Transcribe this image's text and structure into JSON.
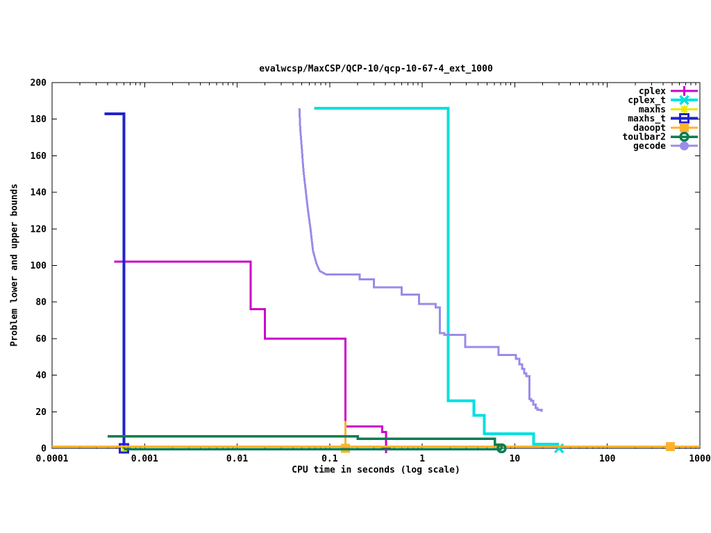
{
  "chart_data": {
    "type": "line",
    "title": "evalwcsp/MaxCSP/QCP-10/qcp-10-67-4_ext_1000",
    "xlabel": "CPU time in seconds (log scale)",
    "ylabel": "Problem lower and upper bounds",
    "x_scale": "log",
    "xlim": [
      0.0001,
      1000
    ],
    "ylim": [
      0,
      200
    ],
    "grid": false,
    "legend_position": "top-right",
    "x_ticks": [
      {
        "v": 0.0001,
        "label": "0.0001"
      },
      {
        "v": 0.001,
        "label": "0.001"
      },
      {
        "v": 0.01,
        "label": "0.01"
      },
      {
        "v": 0.1,
        "label": "0.1"
      },
      {
        "v": 1,
        "label": "1"
      },
      {
        "v": 10,
        "label": "10"
      },
      {
        "v": 100,
        "label": "100"
      },
      {
        "v": 1000,
        "label": "1000"
      }
    ],
    "y_ticks": [
      0,
      20,
      40,
      60,
      80,
      100,
      120,
      140,
      160,
      180,
      200
    ],
    "series": [
      {
        "name": "cplex",
        "label": "cplex",
        "color": "#cc00cc",
        "marker": "plus",
        "line_width": 3,
        "segments": [
          [
            [
              0.00047,
              102
            ],
            [
              0.014,
              102
            ],
            [
              0.014,
              76
            ],
            [
              0.02,
              76
            ],
            [
              0.02,
              60
            ],
            [
              0.148,
              60
            ],
            [
              0.148,
              12
            ],
            [
              0.37,
              12
            ],
            [
              0.37,
              9
            ],
            [
              0.405,
              9
            ],
            [
              0.405,
              0
            ]
          ]
        ],
        "markers": [
          [
            0.405,
            0
          ]
        ]
      },
      {
        "name": "cplex_t",
        "label": "cplex_t",
        "color": "#00e0e0",
        "marker": "cross",
        "line_width": 4,
        "segments": [
          [
            [
              0.068,
              186
            ],
            [
              1.9,
              186
            ],
            [
              1.9,
              26
            ],
            [
              3.6,
              26
            ],
            [
              3.6,
              18
            ],
            [
              4.7,
              18
            ],
            [
              4.7,
              8
            ],
            [
              16,
              8
            ],
            [
              16,
              2.3
            ],
            [
              30,
              2.3
            ]
          ]
        ],
        "markers": [
          [
            30,
            0
          ]
        ]
      },
      {
        "name": "maxhs",
        "label": "maxhs",
        "color": "#e8e800",
        "marker": "star",
        "line_width": 3,
        "segments": [],
        "markers": [
          [
            0.0006,
            0
          ]
        ]
      },
      {
        "name": "maxhs_t",
        "label": "maxhs_t",
        "color": "#2222cc",
        "marker": "open-square",
        "line_width": 4,
        "segments": [
          [
            [
              0.00037,
              183
            ],
            [
              0.0006,
              183
            ],
            [
              0.0006,
              0
            ]
          ]
        ],
        "markers": [
          [
            0.0006,
            0
          ]
        ]
      },
      {
        "name": "daoopt",
        "label": "daoopt",
        "color": "#ffb230",
        "marker": "filled-square",
        "line_width": 3,
        "segments": [
          [
            [
              0.0001,
              1
            ],
            [
              1000,
              1
            ]
          ],
          [
            [
              0.148,
              15
            ],
            [
              0.148,
              0
            ]
          ]
        ],
        "markers": [
          [
            0.148,
            0
          ],
          [
            480,
            1
          ]
        ]
      },
      {
        "name": "toulbar2",
        "label": "toulbar2",
        "color": "#0b7d50",
        "marker": "circle-dot",
        "line_width": 3.5,
        "segments": [
          [
            [
              0.0004,
              6.5
            ],
            [
              0.2,
              6.5
            ],
            [
              0.2,
              5.2
            ],
            [
              6.1,
              5.2
            ],
            [
              6.1,
              2
            ],
            [
              7.2,
              2
            ],
            [
              7.2,
              0
            ]
          ],
          [
            [
              0.0006,
              -0.4
            ],
            [
              7.2,
              -0.4
            ]
          ]
        ],
        "markers": [
          [
            7.2,
            0
          ]
        ]
      },
      {
        "name": "gecode",
        "label": "gecode",
        "color": "#9a8ce8",
        "marker": "filled-circle",
        "line_width": 3,
        "segments": [
          [
            [
              0.047,
              186
            ],
            [
              0.048,
              175
            ],
            [
              0.05,
              164
            ],
            [
              0.052,
              152
            ],
            [
              0.055,
              141
            ],
            [
              0.058,
              131
            ],
            [
              0.062,
              120
            ],
            [
              0.066,
              108
            ],
            [
              0.072,
              101
            ],
            [
              0.078,
              97
            ],
            [
              0.092,
              95
            ],
            [
              0.21,
              95
            ],
            [
              0.21,
              92.5
            ],
            [
              0.3,
              92.5
            ],
            [
              0.3,
              88
            ],
            [
              0.6,
              88
            ],
            [
              0.6,
              84
            ],
            [
              0.92,
              84
            ],
            [
              0.92,
              79
            ],
            [
              1.4,
              79
            ],
            [
              1.4,
              77
            ],
            [
              1.55,
              77
            ],
            [
              1.55,
              63
            ],
            [
              1.73,
              63
            ],
            [
              1.73,
              62
            ],
            [
              2.9,
              62
            ],
            [
              2.9,
              55.4
            ],
            [
              6.7,
              55.4
            ],
            [
              6.7,
              51
            ],
            [
              10.3,
              51
            ],
            [
              10.3,
              49
            ],
            [
              11.2,
              49
            ],
            [
              11.2,
              46
            ],
            [
              12,
              46
            ],
            [
              12,
              43.5
            ],
            [
              12.6,
              43.5
            ],
            [
              12.6,
              41
            ],
            [
              13.3,
              41
            ],
            [
              13.3,
              39.5
            ],
            [
              14.4,
              39.5
            ],
            [
              14.4,
              27
            ],
            [
              15,
              27
            ],
            [
              15,
              26
            ],
            [
              15.8,
              26
            ],
            [
              15.8,
              24
            ],
            [
              16.8,
              24
            ],
            [
              16.8,
              22
            ],
            [
              17.5,
              22
            ],
            [
              17.5,
              21
            ],
            [
              19.5,
              21
            ],
            [
              19.5,
              20
            ]
          ]
        ],
        "markers": []
      }
    ]
  }
}
